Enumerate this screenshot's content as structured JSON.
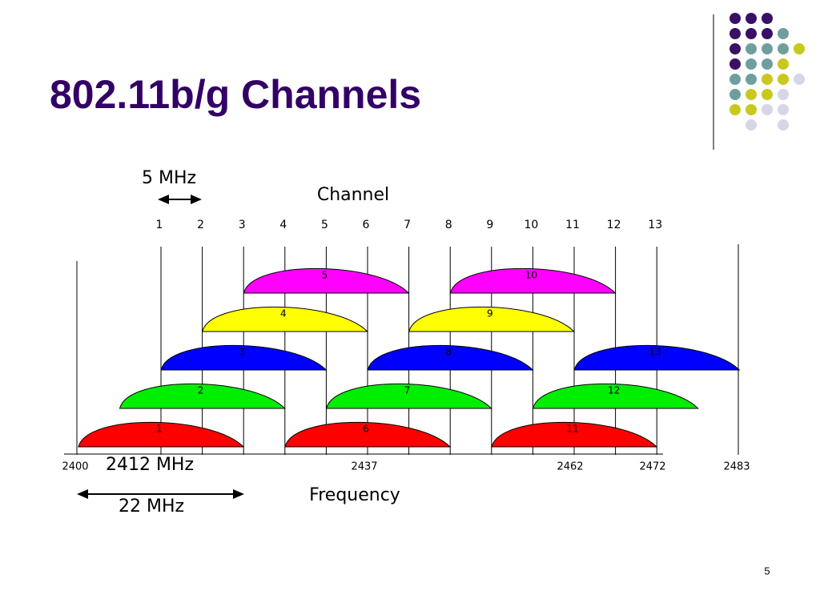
{
  "title": "802.11b/g Channels",
  "diagram": {
    "spacing_label": "5 MHz",
    "channel_axis_label": "Channel",
    "channels": [
      "1",
      "2",
      "3",
      "4",
      "5",
      "6",
      "7",
      "8",
      "9",
      "10",
      "11",
      "12",
      "13"
    ],
    "frequencies": [
      "2400",
      "2437",
      "2462",
      "2472",
      "2483"
    ],
    "center_label": "2412 MHz",
    "width_label": "22 MHz",
    "frequency_axis_label": "Frequency"
  },
  "page_number": "5"
}
